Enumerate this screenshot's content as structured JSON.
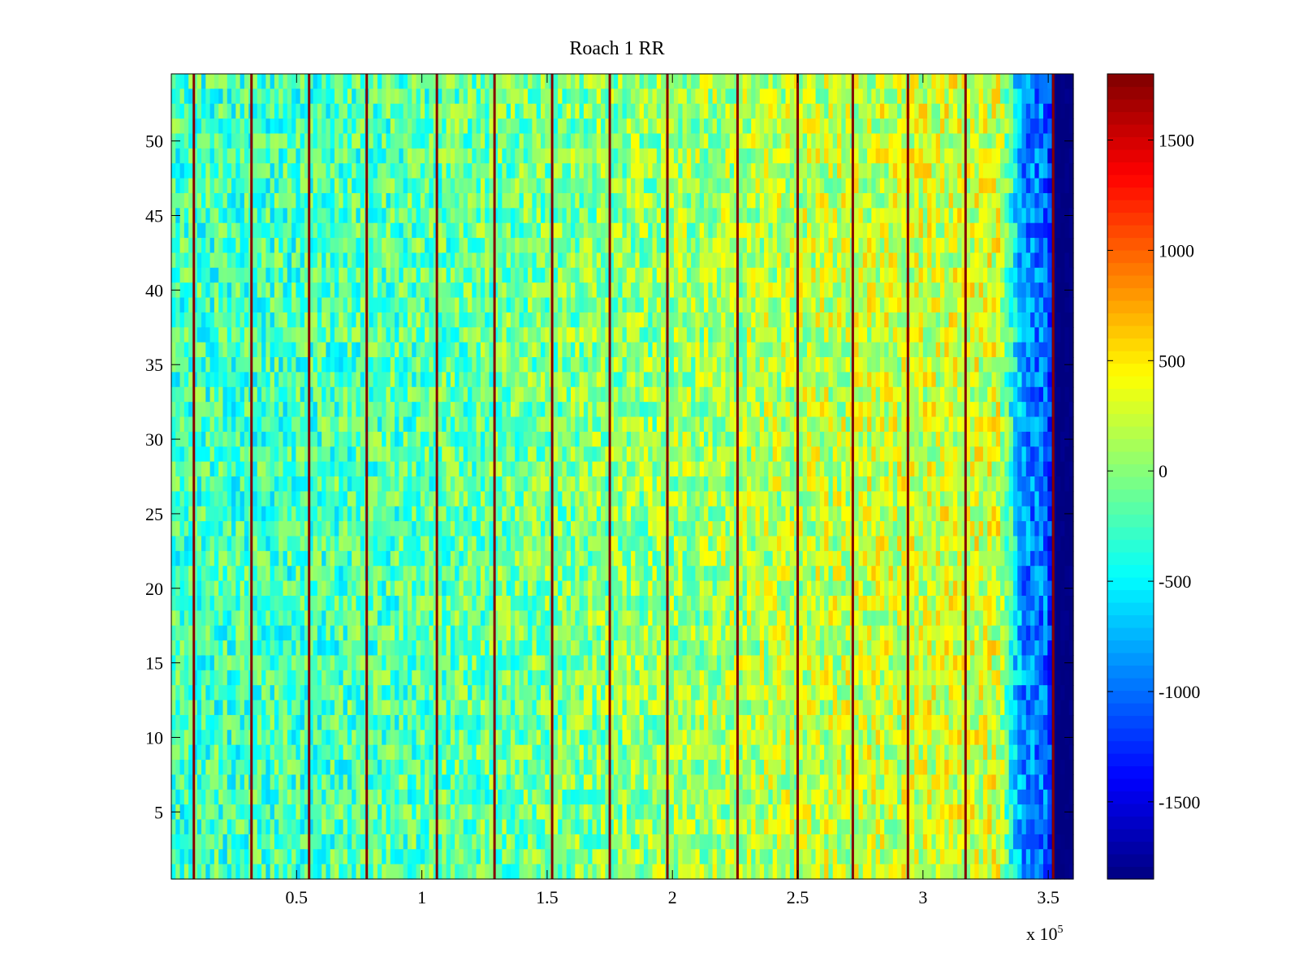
{
  "chart_data": {
    "type": "heatmap",
    "title": "Roach 1 RR",
    "xlabel": "",
    "ylabel": "",
    "x_exponent_label": "x 10",
    "x_exponent_power": "5",
    "xlim": [
      0,
      360000
    ],
    "ylim": [
      0.5,
      54.5
    ],
    "x_ticks": [
      {
        "value": 50000,
        "label": "0.5"
      },
      {
        "value": 100000,
        "label": "1"
      },
      {
        "value": 150000,
        "label": "1.5"
      },
      {
        "value": 200000,
        "label": "2"
      },
      {
        "value": 250000,
        "label": "2.5"
      },
      {
        "value": 300000,
        "label": "3"
      },
      {
        "value": 350000,
        "label": "3.5"
      }
    ],
    "y_ticks": [
      {
        "value": 5,
        "label": "5"
      },
      {
        "value": 10,
        "label": "10"
      },
      {
        "value": 15,
        "label": "15"
      },
      {
        "value": 20,
        "label": "20"
      },
      {
        "value": 25,
        "label": "25"
      },
      {
        "value": 30,
        "label": "30"
      },
      {
        "value": 35,
        "label": "35"
      },
      {
        "value": 40,
        "label": "40"
      },
      {
        "value": 45,
        "label": "45"
      },
      {
        "value": 50,
        "label": "50"
      }
    ],
    "rows": 54,
    "colorbar": {
      "colormap": "jet",
      "clim": [
        -1850,
        1800
      ],
      "ticks": [
        {
          "value": 1500,
          "label": "1500"
        },
        {
          "value": 1000,
          "label": "1000"
        },
        {
          "value": 500,
          "label": "500"
        },
        {
          "value": 0,
          "label": "0"
        },
        {
          "value": -500,
          "label": "-500"
        },
        {
          "value": -1000,
          "label": "-1000"
        },
        {
          "value": -1500,
          "label": "-1500"
        }
      ]
    },
    "column_trend": {
      "x": [
        0,
        50000,
        100000,
        150000,
        200000,
        250000,
        300000,
        330000,
        340000,
        350000,
        352000,
        360000
      ],
      "mean": [
        -250,
        -240,
        -180,
        -60,
        60,
        180,
        260,
        280,
        -900,
        -1000,
        -1850,
        -1850
      ]
    },
    "spike_lines_x": [
      9000,
      32000,
      55000,
      78000,
      106000,
      129000,
      152000,
      175000,
      198000,
      226000,
      250000,
      272000,
      294000,
      317000,
      352000
    ],
    "spike_value": 1780
  }
}
